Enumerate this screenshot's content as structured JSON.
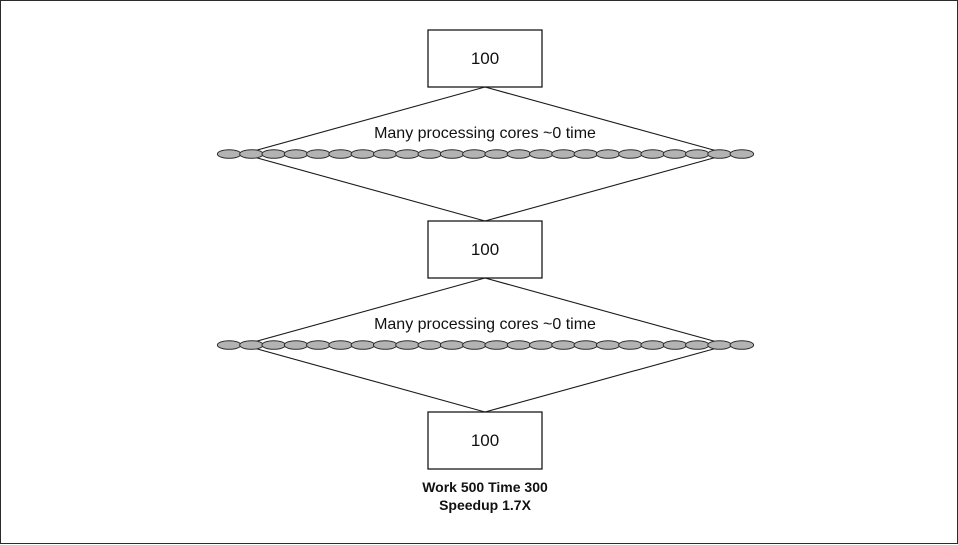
{
  "diagram": {
    "stages": [
      {
        "value": "100"
      },
      {
        "value": "100"
      },
      {
        "value": "100"
      }
    ],
    "parallel_sections": [
      {
        "label": "Many processing cores ~0 time",
        "core_count": 24
      },
      {
        "label": "Many processing cores ~0 time",
        "core_count": 24
      }
    ],
    "summary": {
      "line1": "Work 500 Time 300",
      "line2": "Speedup 1.7X"
    }
  }
}
